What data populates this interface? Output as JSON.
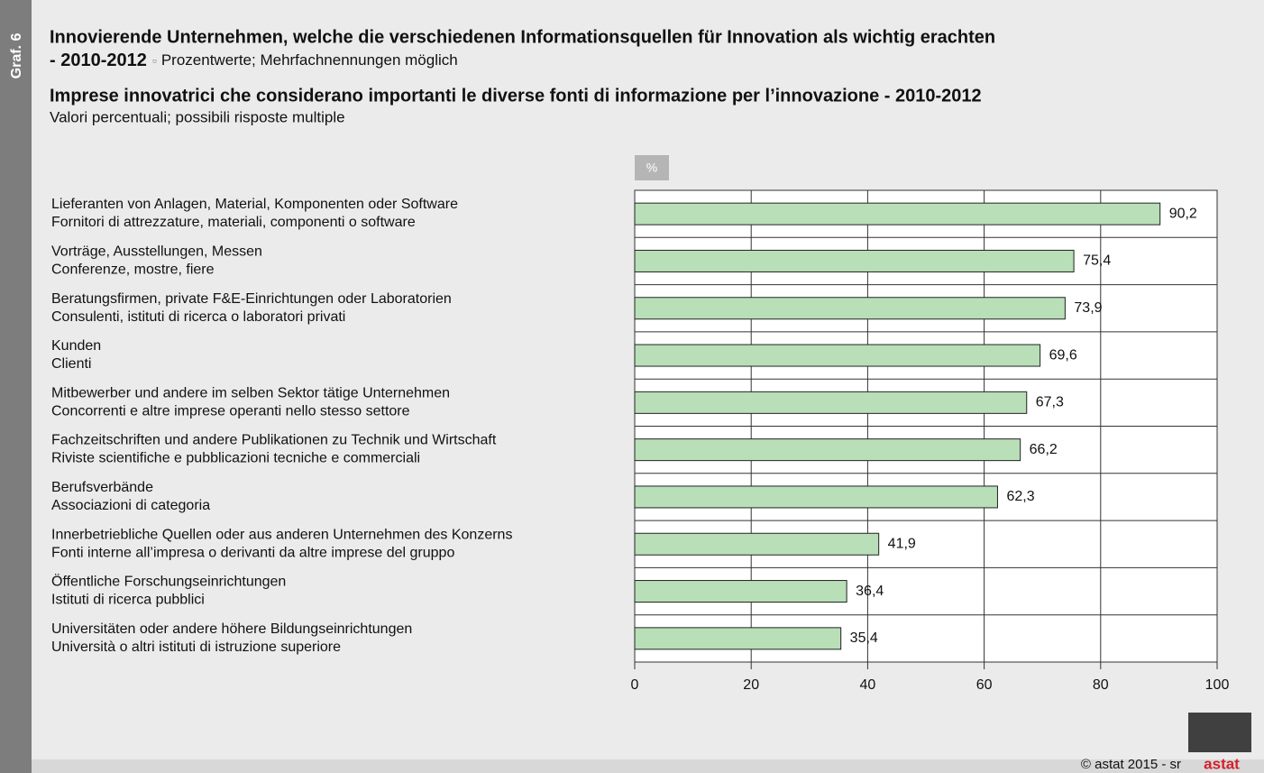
{
  "graph_label": "Graf. 6",
  "footer": "© astat 2015 - sr",
  "logo": "astat",
  "chart_data": {
    "type": "bar",
    "orientation": "horizontal",
    "title": "Innovierende Unternehmen, welche die verschiedenen Informationsquellen für Innovation als wichtig erachten",
    "title_period": "- 2010-2012",
    "subtitle": "Prozentwerte; Mehrfachnennungen möglich",
    "title_it": "Imprese innovatrici che considerano importanti le diverse fonti di informazione per l’innovazione - 2010-2012",
    "subtitle_it": "Valori percentuali; possibili risposte multiple",
    "unit": "%",
    "categories": [
      [
        "Lieferanten von Anlagen, Material, Komponenten oder Software",
        "Fornitori di attrezzature, materiali, componenti o software"
      ],
      [
        "Vorträge, Ausstellungen, Messen",
        "Conferenze, mostre, fiere"
      ],
      [
        "Beratungsfirmen, private F&E-Einrichtungen oder Laboratorien",
        "Consulenti, istituti di ricerca o laboratori privati"
      ],
      [
        "Kunden",
        "Clienti"
      ],
      [
        "Mitbewerber und andere im selben Sektor tätige Unternehmen",
        "Concorrenti e altre imprese operanti nello stesso  settore"
      ],
      [
        "Fachzeitschriften und andere Publikationen zu Technik und Wirtschaft",
        "Riviste scientifiche e pubblicazioni tecniche e commerciali"
      ],
      [
        "Berufsverbände",
        "Associazioni di categoria"
      ],
      [
        "Innerbetriebliche Quellen oder aus anderen Unternehmen des Konzerns",
        "Fonti interne all’impresa o derivanti da altre imprese del gruppo"
      ],
      [
        "Öffentliche Forschungseinrichtungen",
        "Istituti di ricerca pubblici"
      ],
      [
        "Universitäten oder andere höhere Bildungseinrichtungen",
        "Università o altri istituti di istruzione superiore"
      ]
    ],
    "values": [
      90.2,
      75.4,
      73.9,
      69.6,
      67.3,
      66.2,
      62.3,
      41.9,
      36.4,
      35.4
    ],
    "value_labels": [
      "90,2",
      "75,4",
      "73,9",
      "69,6",
      "67,3",
      "66,2",
      "62,3",
      "41,9",
      "36,4",
      "35,4"
    ],
    "color": "#b8dfb8",
    "xlim": [
      0,
      100
    ],
    "xticks": [
      0,
      20,
      40,
      60,
      80,
      100
    ],
    "grid": true
  }
}
